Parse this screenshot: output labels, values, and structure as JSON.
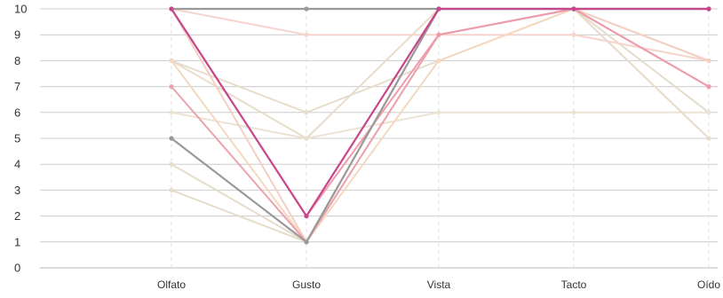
{
  "chart_data": {
    "type": "line",
    "categories": [
      "Olfato",
      "Gusto",
      "Vista",
      "Tacto",
      "Oído"
    ],
    "ylim": [
      0,
      10
    ],
    "yticks": [
      0,
      1,
      2,
      3,
      4,
      5,
      6,
      7,
      8,
      9,
      10
    ],
    "grid": true,
    "series": [
      {
        "values": [
          3,
          1,
          10,
          10,
          5
        ],
        "color": "#e5dccb"
      },
      {
        "values": [
          4,
          1,
          10,
          10,
          6
        ],
        "color": "#e5dccb"
      },
      {
        "values": [
          6,
          5,
          6,
          6,
          6
        ],
        "color": "#ebe3d4"
      },
      {
        "values": [
          8,
          6,
          8,
          10,
          8
        ],
        "color": "#e8ddcc"
      },
      {
        "values": [
          8,
          5,
          10,
          10,
          5
        ],
        "color": "#e8ddcc"
      },
      {
        "values": [
          10,
          9,
          9,
          9,
          8
        ],
        "color": "#f6d4cc"
      },
      {
        "values": [
          8,
          1,
          8,
          10,
          8
        ],
        "color": "#f5d8c0"
      },
      {
        "values": [
          10,
          1,
          9,
          10,
          8
        ],
        "color": "#f3cfc4"
      },
      {
        "values": [
          7,
          1,
          9,
          10,
          7
        ],
        "color": "#eba2ae"
      },
      {
        "values": [
          10,
          2,
          9,
          10,
          7
        ],
        "color": "#ee9cab"
      },
      {
        "values": [
          5,
          1,
          10,
          10,
          10
        ],
        "color": "#999999"
      },
      {
        "values": [
          10,
          10,
          10,
          10,
          10
        ],
        "color": "#999999"
      },
      {
        "values": [
          10,
          2,
          10,
          10,
          10
        ],
        "color": "#c8468b"
      }
    ]
  }
}
